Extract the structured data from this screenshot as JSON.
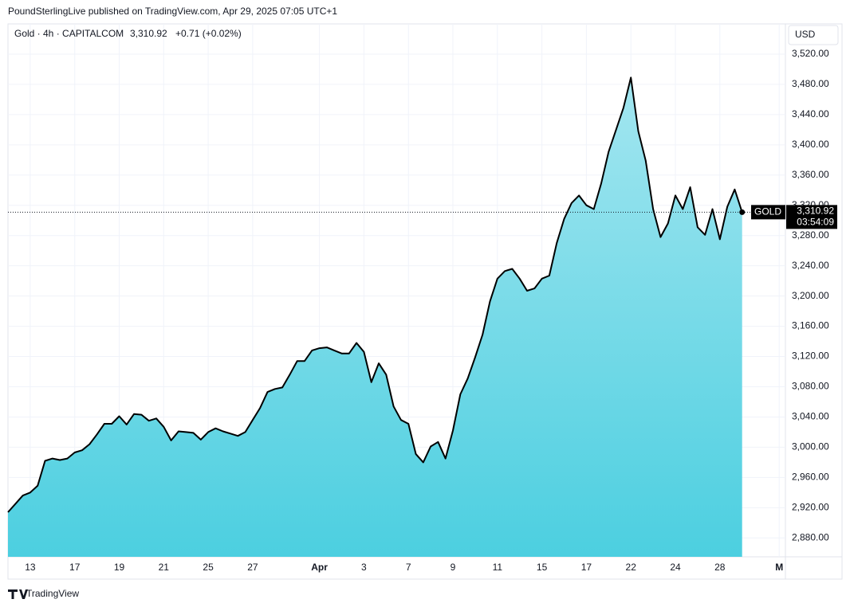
{
  "chart_data": {
    "type": "area",
    "publisher": "PoundSterlingLive published on TradingView.com, Apr 29, 2025 07:05 UTC+1",
    "title": "Gold · 4h · CAPITALCOM",
    "header_price": "3,310.92",
    "header_change": "+0.71 (+0.02%)",
    "currency": "USD",
    "symbol_tag": "GOLD",
    "value_labels": {
      "99": "3,310.92"
    },
    "countdown": "03:54:09",
    "brand": "TradingView",
    "categories": [
      null,
      null,
      null,
      "13",
      null,
      null,
      null,
      null,
      null,
      "17",
      null,
      null,
      null,
      null,
      null,
      "19",
      null,
      null,
      null,
      null,
      null,
      "21",
      null,
      null,
      null,
      null,
      null,
      "25",
      null,
      null,
      null,
      null,
      null,
      "27",
      null,
      null,
      null,
      null,
      null,
      null,
      null,
      null,
      "Apr",
      null,
      null,
      null,
      null,
      null,
      "3",
      null,
      null,
      null,
      null,
      null,
      "7",
      null,
      null,
      null,
      null,
      null,
      "9",
      null,
      null,
      null,
      null,
      null,
      "11",
      null,
      null,
      null,
      null,
      null,
      "15",
      null,
      null,
      null,
      null,
      null,
      "17",
      null,
      null,
      null,
      null,
      null,
      "22",
      null,
      null,
      null,
      null,
      null,
      "24",
      null,
      null,
      null,
      null,
      null,
      "28",
      null,
      null,
      null,
      null,
      null,
      null,
      null,
      "M"
    ],
    "series": [
      {
        "name": "Gold",
        "color": "#000000",
        "fill_top": "#a3e6f0",
        "fill_bottom": "#4ccfe0",
        "values": [
          2914,
          2925,
          2936,
          2940,
          2949,
          2982,
          2985,
          2983,
          2985,
          2993,
          2996,
          3004,
          3017,
          3031,
          3031,
          3041,
          3030,
          3044,
          3043,
          3035,
          3038,
          3027,
          3009,
          3021,
          3020,
          3019,
          3010,
          3020,
          3025,
          3021,
          3018,
          3015,
          3020,
          3036,
          3052,
          3073,
          3077,
          3079,
          3096,
          3114,
          3114,
          3128,
          3131,
          3132,
          3128,
          3124,
          3124,
          3138,
          3126,
          3086,
          3111,
          3096,
          3054,
          3036,
          3031,
          2991,
          2980,
          3001,
          3007,
          2985,
          3022,
          3070,
          3091,
          3119,
          3149,
          3193,
          3223,
          3233,
          3236,
          3223,
          3207,
          3210,
          3223,
          3227,
          3270,
          3302,
          3323,
          3333,
          3320,
          3315,
          3349,
          3391,
          3420,
          3449,
          3489,
          3418,
          3379,
          3315,
          3278,
          3296,
          3333,
          3315,
          3344,
          3291,
          3281,
          3315,
          3275,
          3318,
          3341,
          3310.92,
          null,
          null,
          null,
          null,
          null
        ]
      }
    ],
    "ylim": [
      2855,
      3560
    ],
    "yticks": [
      {
        "value": 2880,
        "label": "2,880.00"
      },
      {
        "value": 2920,
        "label": "2,920.00"
      },
      {
        "value": 2960,
        "label": "2,960.00"
      },
      {
        "value": 3000,
        "label": "3,000.00"
      },
      {
        "value": 3040,
        "label": "3,040.00"
      },
      {
        "value": 3080,
        "label": "3,080.00"
      },
      {
        "value": 3120,
        "label": "3,120.00"
      },
      {
        "value": 3160,
        "label": "3,160.00"
      },
      {
        "value": 3200,
        "label": "3,200.00"
      },
      {
        "value": 3240,
        "label": "3,240.00"
      },
      {
        "value": 3280,
        "label": "3,280.00"
      },
      {
        "value": 3320,
        "label": "3,320.00"
      },
      {
        "value": 3360,
        "label": "3,360.00"
      },
      {
        "value": 3400,
        "label": "3,400.00"
      },
      {
        "value": 3440,
        "label": "3,440.00"
      },
      {
        "value": 3480,
        "label": "3,480.00"
      },
      {
        "value": 3520,
        "label": "3,520.00"
      }
    ],
    "grid": true
  }
}
